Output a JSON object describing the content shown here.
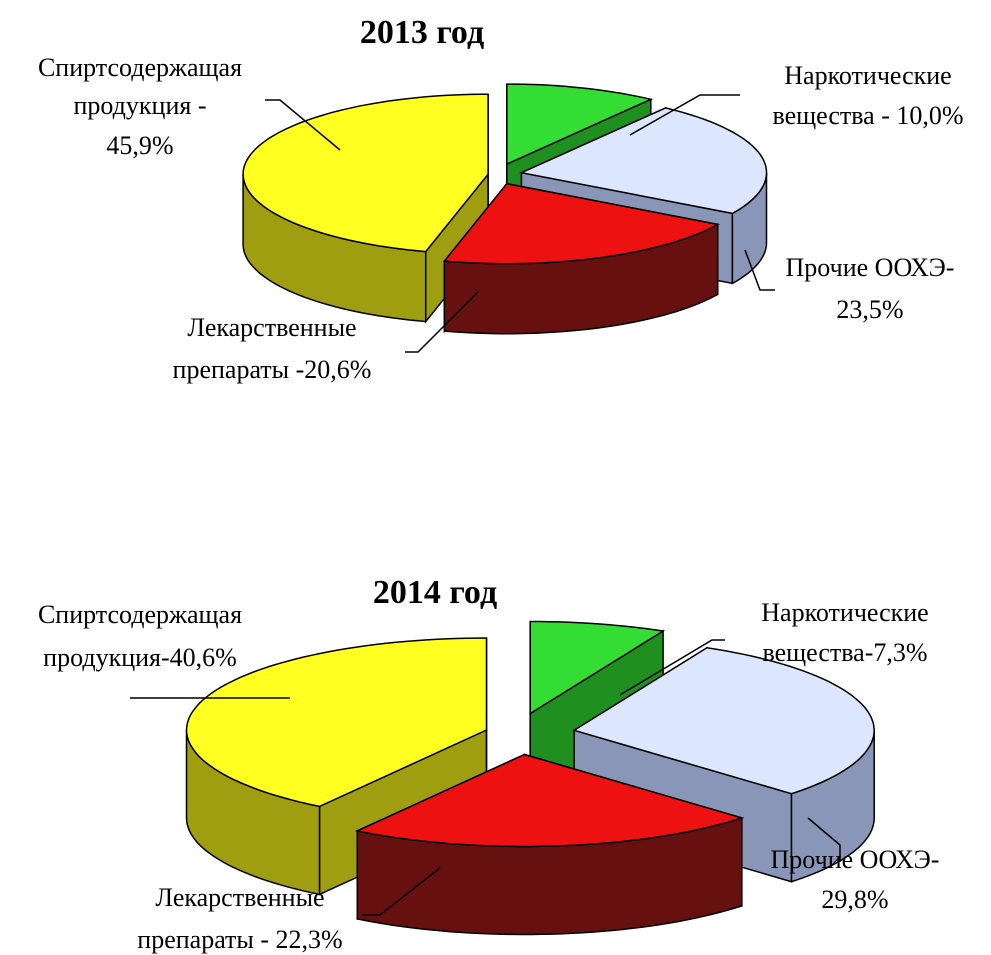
{
  "chart_data": [
    {
      "type": "pie3d",
      "title": "2013 год",
      "values": [
        10.0,
        23.5,
        20.6,
        45.9
      ],
      "value_labels": [
        [
          "Наркотические",
          "вещества - 10,0%"
        ],
        [
          "Прочие ООХЭ-",
          "23,5%"
        ],
        [
          "Лекарственные",
          "препараты -20,6%"
        ],
        [
          "Спиртсодержащая",
          "продукция -",
          "45,9%"
        ]
      ],
      "colors": [
        "#33dd33",
        "#dde6ff",
        "#ee1111",
        "#ffff22"
      ],
      "side_colors": [
        "#1f8f1f",
        "#8a96b8",
        "#661010",
        "#9e9e10"
      ]
    },
    {
      "type": "pie3d",
      "title": "2014 год",
      "values": [
        7.3,
        29.8,
        22.3,
        40.6
      ],
      "value_labels": [
        [
          "Наркотические",
          "вещества-7,3%"
        ],
        [
          "Прочие ООХЭ-",
          "29,8%"
        ],
        [
          "Лекарственные",
          "препараты - 22,3%"
        ],
        [
          "Спиртсодержащая",
          "продукция-40,6%"
        ]
      ],
      "colors": [
        "#33dd33",
        "#dde6ff",
        "#ee1111",
        "#ffff22"
      ],
      "side_colors": [
        "#1f8f1f",
        "#8a96b8",
        "#661010",
        "#9e9e10"
      ]
    }
  ]
}
